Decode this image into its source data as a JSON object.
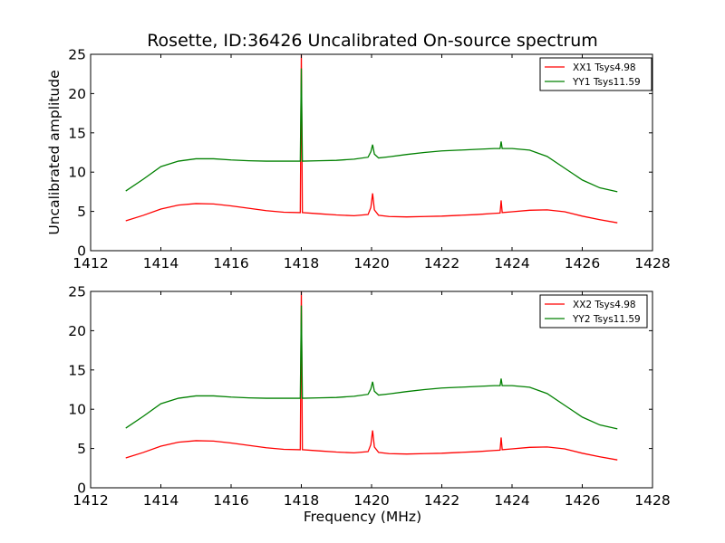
{
  "title": "Rosette, ID:36426 Uncalibrated On-source spectrum",
  "chart_data": [
    {
      "type": "line",
      "title": "Rosette, ID:36426 Uncalibrated On-source spectrum",
      "xlabel": "",
      "ylabel": "Uncalibrated amplitude",
      "xlim": [
        1412,
        1428
      ],
      "ylim": [
        0,
        25
      ],
      "xticks": [
        1412,
        1414,
        1416,
        1418,
        1420,
        1422,
        1424,
        1426,
        1428
      ],
      "yticks": [
        0,
        5,
        10,
        15,
        20,
        25
      ],
      "grid": false,
      "legend_position": "top-right",
      "series": [
        {
          "name": "XX1 Tsys4.98",
          "color": "#ff0000",
          "x": [
            1413.0,
            1413.5,
            1414.0,
            1414.5,
            1415.0,
            1415.5,
            1416.0,
            1416.5,
            1417.0,
            1417.5,
            1417.97,
            1418.0,
            1418.03,
            1418.5,
            1419.0,
            1419.5,
            1419.9,
            1419.98,
            1420.03,
            1420.08,
            1420.2,
            1420.5,
            1421.0,
            1421.5,
            1422.0,
            1422.5,
            1423.0,
            1423.5,
            1423.66,
            1423.69,
            1423.72,
            1424.0,
            1424.5,
            1425.0,
            1425.5,
            1426.0,
            1426.5,
            1427.0
          ],
          "y": [
            3.8,
            4.5,
            5.3,
            5.8,
            6.0,
            5.95,
            5.7,
            5.4,
            5.1,
            4.9,
            4.85,
            25.0,
            4.85,
            4.7,
            4.55,
            4.45,
            4.6,
            5.5,
            7.3,
            5.2,
            4.5,
            4.35,
            4.3,
            4.35,
            4.4,
            4.5,
            4.6,
            4.75,
            4.8,
            6.4,
            4.85,
            4.95,
            5.15,
            5.2,
            4.95,
            4.4,
            3.95,
            3.55
          ]
        },
        {
          "name": "YY1 Tsys11.59",
          "color": "#008000",
          "x": [
            1413.0,
            1413.5,
            1414.0,
            1414.5,
            1415.0,
            1415.5,
            1416.0,
            1416.5,
            1417.0,
            1417.5,
            1417.97,
            1418.0,
            1418.03,
            1418.5,
            1419.0,
            1419.5,
            1419.9,
            1419.98,
            1420.03,
            1420.08,
            1420.2,
            1420.5,
            1421.0,
            1421.5,
            1422.0,
            1422.5,
            1423.0,
            1423.5,
            1423.66,
            1423.69,
            1423.72,
            1424.0,
            1424.5,
            1425.0,
            1425.5,
            1426.0,
            1426.5,
            1427.0
          ],
          "y": [
            7.6,
            9.1,
            10.7,
            11.4,
            11.7,
            11.7,
            11.55,
            11.45,
            11.4,
            11.4,
            11.4,
            23.2,
            11.4,
            11.45,
            11.5,
            11.65,
            11.9,
            12.6,
            13.5,
            12.3,
            11.8,
            11.95,
            12.25,
            12.5,
            12.7,
            12.8,
            12.9,
            13.0,
            13.0,
            13.9,
            13.0,
            13.0,
            12.8,
            12.0,
            10.5,
            9.0,
            8.0,
            7.5
          ]
        }
      ]
    },
    {
      "type": "line",
      "title": "",
      "xlabel": "Frequency (MHz)",
      "ylabel": "",
      "xlim": [
        1412,
        1428
      ],
      "ylim": [
        0,
        25
      ],
      "xticks": [
        1412,
        1414,
        1416,
        1418,
        1420,
        1422,
        1424,
        1426,
        1428
      ],
      "yticks": [
        0,
        5,
        10,
        15,
        20,
        25
      ],
      "grid": false,
      "legend_position": "top-right",
      "series": [
        {
          "name": "XX2 Tsys4.98",
          "color": "#ff0000",
          "x": [
            1413.0,
            1413.5,
            1414.0,
            1414.5,
            1415.0,
            1415.5,
            1416.0,
            1416.5,
            1417.0,
            1417.5,
            1417.97,
            1418.0,
            1418.03,
            1418.5,
            1419.0,
            1419.5,
            1419.9,
            1419.98,
            1420.03,
            1420.08,
            1420.2,
            1420.5,
            1421.0,
            1421.5,
            1422.0,
            1422.5,
            1423.0,
            1423.5,
            1423.66,
            1423.69,
            1423.72,
            1424.0,
            1424.5,
            1425.0,
            1425.5,
            1426.0,
            1426.5,
            1427.0
          ],
          "y": [
            3.8,
            4.5,
            5.3,
            5.8,
            6.0,
            5.95,
            5.7,
            5.4,
            5.1,
            4.9,
            4.85,
            25.0,
            4.85,
            4.7,
            4.55,
            4.45,
            4.6,
            5.5,
            7.3,
            5.2,
            4.5,
            4.35,
            4.3,
            4.35,
            4.4,
            4.5,
            4.6,
            4.75,
            4.8,
            6.4,
            4.85,
            4.95,
            5.15,
            5.2,
            4.95,
            4.4,
            3.95,
            3.55
          ]
        },
        {
          "name": "YY2 Tsys11.59",
          "color": "#008000",
          "x": [
            1413.0,
            1413.5,
            1414.0,
            1414.5,
            1415.0,
            1415.5,
            1416.0,
            1416.5,
            1417.0,
            1417.5,
            1417.97,
            1418.0,
            1418.03,
            1418.5,
            1419.0,
            1419.5,
            1419.9,
            1419.98,
            1420.03,
            1420.08,
            1420.2,
            1420.5,
            1421.0,
            1421.5,
            1422.0,
            1422.5,
            1423.0,
            1423.5,
            1423.66,
            1423.69,
            1423.72,
            1424.0,
            1424.5,
            1425.0,
            1425.5,
            1426.0,
            1426.5,
            1427.0
          ],
          "y": [
            7.6,
            9.1,
            10.7,
            11.4,
            11.7,
            11.7,
            11.55,
            11.45,
            11.4,
            11.4,
            11.4,
            23.2,
            11.4,
            11.45,
            11.5,
            11.65,
            11.9,
            12.6,
            13.5,
            12.3,
            11.8,
            11.95,
            12.25,
            12.5,
            12.7,
            12.8,
            12.9,
            13.0,
            13.0,
            13.9,
            13.0,
            13.0,
            12.8,
            12.0,
            10.5,
            9.0,
            8.0,
            7.5
          ]
        }
      ]
    }
  ]
}
